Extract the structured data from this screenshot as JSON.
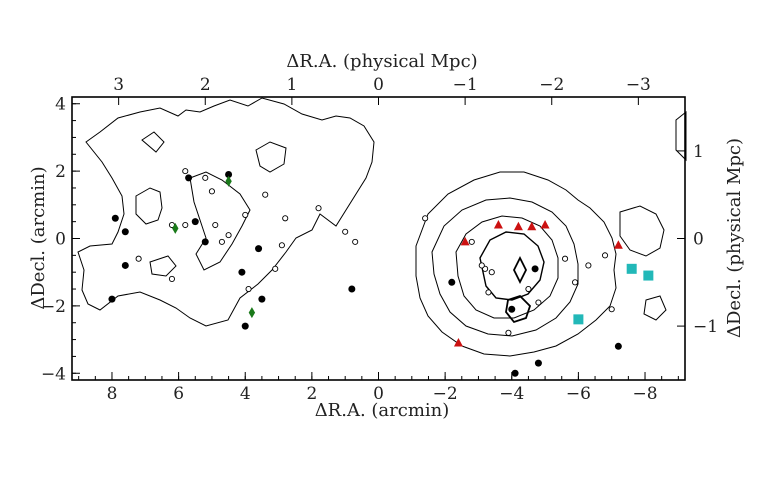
{
  "chart_data": {
    "type": "scatter",
    "title": "",
    "xlabel": "ΔR.A. (arcmin)",
    "ylabel": "ΔDecl. (arcmin)",
    "x2label": "ΔR.A. (physical Mpc)",
    "y2label": "ΔDecl. (physical Mpc)",
    "xlim": [
      9.2,
      -9.2
    ],
    "ylim": [
      -4.2,
      4.2
    ],
    "x_ticks": [
      {
        "value": 8,
        "label": "8"
      },
      {
        "value": 6,
        "label": "6"
      },
      {
        "value": 4,
        "label": "4"
      },
      {
        "value": 2,
        "label": "2"
      },
      {
        "value": 0,
        "label": "0"
      },
      {
        "value": -2,
        "label": "−2"
      },
      {
        "value": -4,
        "label": "−4"
      },
      {
        "value": -6,
        "label": "−6"
      },
      {
        "value": -8,
        "label": "−8"
      }
    ],
    "y_ticks": [
      {
        "value": -4,
        "label": "−4"
      },
      {
        "value": -2,
        "label": "−2"
      },
      {
        "value": 0,
        "label": "0"
      },
      {
        "value": 2,
        "label": "2"
      },
      {
        "value": 4,
        "label": "4"
      }
    ],
    "x2_ticks": [
      {
        "value": 7.8,
        "label": "3"
      },
      {
        "value": 5.2,
        "label": "2"
      },
      {
        "value": 2.6,
        "label": "1"
      },
      {
        "value": 0,
        "label": "0"
      },
      {
        "value": -2.6,
        "label": "−1"
      },
      {
        "value": -5.2,
        "label": "−2"
      },
      {
        "value": -7.8,
        "label": "−3"
      }
    ],
    "y2_ticks": [
      {
        "value": 2.6,
        "label": "1"
      },
      {
        "value": 0,
        "label": "0"
      },
      {
        "value": -2.6,
        "label": "−1"
      }
    ],
    "grid": false,
    "series": [
      {
        "marker": "filled-circle",
        "color": "#000000",
        "points": [
          [
            8.0,
            -1.8
          ],
          [
            7.9,
            0.6
          ],
          [
            7.6,
            0.2
          ],
          [
            7.6,
            -0.8
          ],
          [
            5.7,
            1.8
          ],
          [
            5.5,
            0.5
          ],
          [
            5.2,
            -0.1
          ],
          [
            4.5,
            1.9
          ],
          [
            4.1,
            -1.0
          ],
          [
            4.0,
            -2.6
          ],
          [
            3.6,
            -0.3
          ],
          [
            3.5,
            -1.8
          ],
          [
            0.8,
            -1.5
          ],
          [
            -2.2,
            -1.3
          ],
          [
            -4.0,
            -2.1
          ],
          [
            -4.7,
            -0.9
          ],
          [
            -4.1,
            -4.0
          ],
          [
            -4.8,
            -3.7
          ],
          [
            -7.2,
            -3.2
          ]
        ]
      },
      {
        "marker": "open-circle",
        "color": "#000000",
        "points": [
          [
            5.8,
            2.0
          ],
          [
            5.2,
            1.8
          ],
          [
            5.0,
            1.4
          ],
          [
            6.2,
            0.4
          ],
          [
            5.8,
            0.4
          ],
          [
            4.9,
            0.4
          ],
          [
            4.0,
            0.7
          ],
          [
            3.4,
            1.3
          ],
          [
            2.8,
            0.6
          ],
          [
            2.9,
            -0.2
          ],
          [
            3.1,
            -0.9
          ],
          [
            4.5,
            0.1
          ],
          [
            4.7,
            -0.1
          ],
          [
            3.9,
            -1.5
          ],
          [
            6.2,
            -1.2
          ],
          [
            7.2,
            -0.6
          ],
          [
            1.8,
            0.9
          ],
          [
            1.0,
            0.2
          ],
          [
            0.7,
            -0.1
          ],
          [
            -1.4,
            0.6
          ],
          [
            -2.8,
            -0.1
          ],
          [
            -3.2,
            -0.9
          ],
          [
            -3.3,
            -1.6
          ],
          [
            -4.5,
            -1.5
          ],
          [
            -4.8,
            -1.9
          ],
          [
            -5.6,
            -0.6
          ],
          [
            -5.9,
            -1.3
          ],
          [
            -6.3,
            -0.8
          ],
          [
            -6.8,
            -0.5
          ],
          [
            -7.0,
            -2.1
          ],
          [
            -3.9,
            -2.8
          ],
          [
            -3.4,
            -1.0
          ],
          [
            -3.1,
            -0.8
          ]
        ]
      },
      {
        "marker": "triangle",
        "color": "#cc1111",
        "points": [
          [
            -2.6,
            -0.1
          ],
          [
            -3.6,
            0.4
          ],
          [
            -4.2,
            0.35
          ],
          [
            -4.6,
            0.35
          ],
          [
            -5.0,
            0.4
          ],
          [
            -7.2,
            -0.2
          ],
          [
            -2.4,
            -3.1
          ]
        ]
      },
      {
        "marker": "diamond",
        "color": "#1a7a1a",
        "points": [
          [
            4.5,
            1.7
          ],
          [
            6.1,
            0.3
          ],
          [
            3.8,
            -2.2
          ]
        ]
      },
      {
        "marker": "square",
        "color": "#22b8b8",
        "points": [
          [
            -7.6,
            -0.9
          ],
          [
            -8.1,
            -1.1
          ],
          [
            -6.0,
            -2.4
          ]
        ]
      }
    ]
  }
}
